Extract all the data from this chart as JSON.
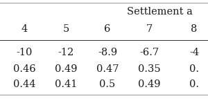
{
  "header_top": "Settlement a",
  "col_headers": [
    "4",
    "5",
    "6",
    "7",
    "8"
  ],
  "rows": [
    [
      "-10",
      "-12",
      "-8.9",
      "-6.7",
      "-4"
    ],
    [
      "0.46",
      "0.49",
      "0.47",
      "0.35",
      "0."
    ],
    [
      "0.44",
      "0.41",
      "0.5",
      "0.49",
      "0."
    ]
  ],
  "bg_color": "#ffffff",
  "text_color": "#1a1a1a",
  "font_size": 10.5,
  "header_font_size": 10.5,
  "fig_width": 3.0,
  "fig_height": 1.49,
  "dpi": 100
}
